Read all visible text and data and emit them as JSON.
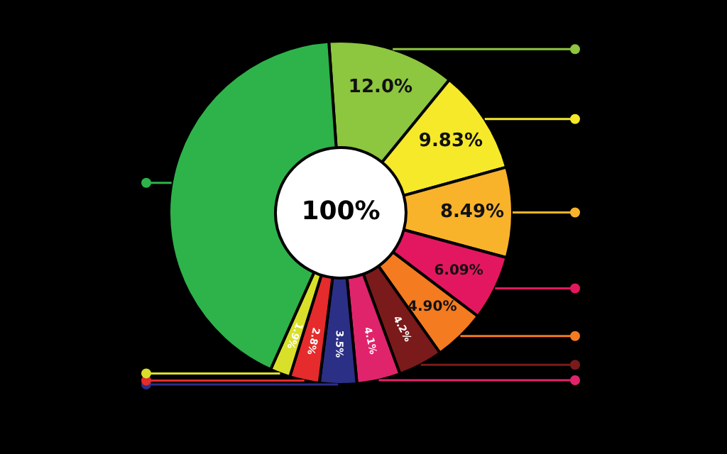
{
  "chart_data": {
    "type": "donut",
    "categories": [
      null,
      null,
      null,
      null,
      null,
      null,
      null,
      null,
      null,
      null,
      null
    ],
    "values": [
      12.0,
      9.83,
      8.49,
      6.09,
      4.9,
      4.2,
      4.1,
      3.5,
      2.8,
      1.9,
      42.19
    ],
    "colors": [
      "#8dc63f",
      "#f5e92a",
      "#f8b32b",
      "#e3175f",
      "#f47b20",
      "#7b1a1a",
      "#e0246c",
      "#2b2f86",
      "#e52b2b",
      "#d8e02a",
      "#2db34a"
    ],
    "value_labels": [
      "12.0%",
      "9.83%",
      "8.49%",
      "6.09%",
      "4.90%",
      "4.2%",
      "4.1%",
      "3.5%",
      "2.8%",
      "1.9%",
      null
    ],
    "annotations": [
      "100%"
    ]
  }
}
